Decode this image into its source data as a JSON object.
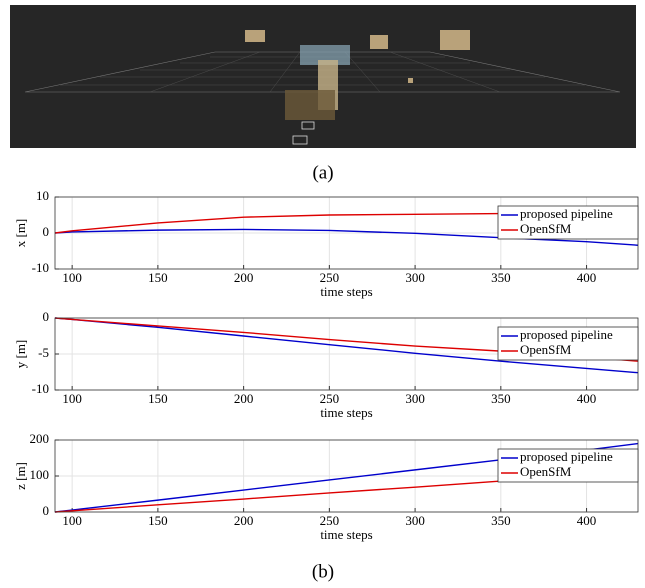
{
  "captions": [
    "(a)",
    "(b)"
  ],
  "chart_data": [
    {
      "type": "line",
      "x_label": "time steps",
      "y_label": "x [m]",
      "x": [
        90,
        100,
        150,
        200,
        250,
        300,
        350,
        400,
        430
      ],
      "series": [
        {
          "name": "proposed pipeline",
          "color": "#0000cc",
          "values": [
            0,
            0.3,
            0.8,
            1,
            0.7,
            -0.1,
            -1.3,
            -2.4,
            -3.4
          ]
        },
        {
          "name": "OpenSfM",
          "color": "#dd0000",
          "values": [
            0,
            0.6,
            2.8,
            4.4,
            5,
            5.2,
            5.4,
            5.5,
            5.6
          ]
        }
      ],
      "xlim": [
        90,
        430
      ],
      "ylim": [
        -10,
        10
      ],
      "xticks": [
        100,
        150,
        200,
        250,
        300,
        350,
        400
      ],
      "yticks": [
        -10,
        0,
        10
      ],
      "grid": true,
      "legend": "top-right"
    },
    {
      "type": "line",
      "x_label": "time steps",
      "y_label": "y [m]",
      "x": [
        90,
        100,
        150,
        200,
        250,
        300,
        350,
        400,
        430
      ],
      "series": [
        {
          "name": "proposed pipeline",
          "color": "#0000cc",
          "values": [
            0,
            -0.2,
            -1.3,
            -2.5,
            -3.7,
            -4.9,
            -6,
            -7,
            -7.6
          ]
        },
        {
          "name": "OpenSfM",
          "color": "#dd0000",
          "values": [
            0,
            -0.2,
            -1.1,
            -2,
            -3,
            -3.9,
            -4.6,
            -5.4,
            -6
          ]
        }
      ],
      "xlim": [
        90,
        430
      ],
      "ylim": [
        -10,
        0
      ],
      "xticks": [
        100,
        150,
        200,
        250,
        300,
        350,
        400
      ],
      "yticks": [
        -10,
        -5,
        0
      ],
      "grid": true,
      "legend": "top-right"
    },
    {
      "type": "line",
      "x_label": "time steps",
      "y_label": "z [m]",
      "x": [
        90,
        100,
        150,
        200,
        250,
        300,
        350,
        400,
        430
      ],
      "series": [
        {
          "name": "proposed pipeline",
          "color": "#0000cc",
          "values": [
            0,
            5.5,
            33,
            61,
            89,
            117,
            145,
            172,
            190
          ]
        },
        {
          "name": "OpenSfM",
          "color": "#dd0000",
          "values": [
            0,
            3.3,
            20,
            36,
            53,
            69,
            86,
            102,
            115
          ]
        }
      ],
      "xlim": [
        90,
        430
      ],
      "ylim": [
        0,
        200
      ],
      "xticks": [
        100,
        150,
        200,
        250,
        300,
        350,
        400
      ],
      "yticks": [
        0,
        100,
        200
      ],
      "grid": true,
      "legend": "top-right"
    }
  ]
}
